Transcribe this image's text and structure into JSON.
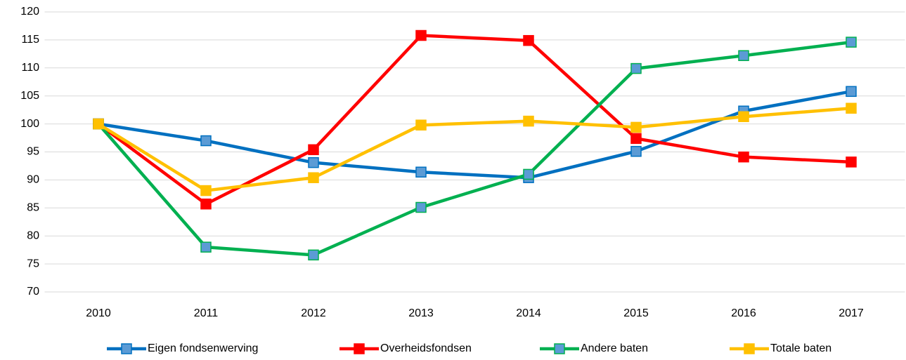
{
  "chart_data": {
    "type": "line",
    "categories": [
      "2010",
      "2011",
      "2012",
      "2013",
      "2014",
      "2015",
      "2016",
      "2017"
    ],
    "series": [
      {
        "name": "Eigen fondsenwerving",
        "color": "#0070c0",
        "marker_color": "#5b9bd5",
        "values": [
          100,
          97.0,
          93.1,
          91.4,
          90.4,
          95.1,
          102.3,
          105.8
        ]
      },
      {
        "name": "Overheidsfondsen",
        "color": "#ff0000",
        "marker_color": "#ff0000",
        "values": [
          100,
          85.7,
          95.4,
          115.8,
          114.9,
          97.4,
          94.1,
          93.2
        ]
      },
      {
        "name": "Andere baten",
        "color": "#00b050",
        "marker_color": "#5b9bd5",
        "values": [
          100,
          78.0,
          76.6,
          85.1,
          91.0,
          109.9,
          112.2,
          114.6
        ]
      },
      {
        "name": "Totale baten",
        "color": "#ffc000",
        "marker_color": "#ffc000",
        "values": [
          100,
          88.1,
          90.4,
          99.8,
          100.5,
          99.4,
          101.3,
          102.8
        ]
      }
    ],
    "ylim": [
      70,
      120
    ],
    "yticks": [
      70,
      75,
      80,
      85,
      90,
      95,
      100,
      105,
      110,
      115,
      120
    ],
    "grid": true,
    "legend": "bottom"
  }
}
